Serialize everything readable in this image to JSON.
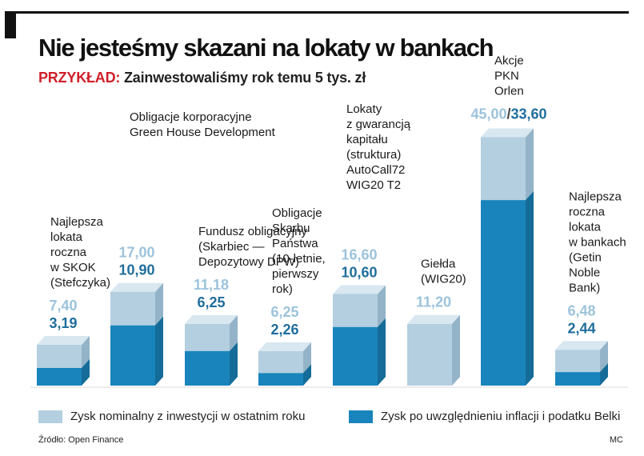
{
  "header": {
    "title": "Nie jesteśmy skazani na lokaty w bankach",
    "subtitle_prefix": "PRZYKŁAD:",
    "subtitle": "Zainwestowaliśmy rok temu 5 tys. zł"
  },
  "colors": {
    "nominal_front": "#b3cfe0",
    "nominal_side": "#93b3c8",
    "nominal_top": "#d8e7f0",
    "real_front": "#1884bb",
    "real_side": "#156c98",
    "accent_red": "#d0202a",
    "value_real_text": "#1f6e9c",
    "value_nominal_text": "#9cc3dc"
  },
  "legend": {
    "nominal": "Zysk nominalny z inwestycji w ostatnim roku",
    "real": "Zysk po uwzględnieniu inflacji i podatku Belki"
  },
  "footer": {
    "source": "Źródło: Open Finance",
    "author": "MC"
  },
  "chart_data": {
    "type": "bar",
    "ylabel": "",
    "series": [
      {
        "name": "Zysk nominalny z inwestycji w ostatnim roku",
        "values": [
          7.4,
          17.0,
          11.18,
          6.25,
          16.6,
          11.2,
          45.0,
          6.48
        ]
      },
      {
        "name": "Zysk po uwzględnieniu inflacji i podatku Belki",
        "values": [
          3.19,
          10.9,
          6.25,
          2.26,
          10.6,
          null,
          33.6,
          2.44
        ]
      }
    ],
    "bars": [
      {
        "label_lines": [
          "Najlepsza",
          "lokata",
          "roczna",
          "w SKOK",
          "(Stefczyka)"
        ],
        "nominal": 7.4,
        "real": 3.19,
        "nominal_text": "7,40",
        "real_text": "3,19"
      },
      {
        "label_lines": [
          "Obligacje korporacyjne",
          "Green House Development"
        ],
        "nominal": 17.0,
        "real": 10.9,
        "nominal_text": "17,00",
        "real_text": "10,90"
      },
      {
        "label_lines": [
          "Fundusz obligacyjny",
          "(Skarbiec —",
          "Depozytowy DPW)"
        ],
        "nominal": 11.18,
        "real": 6.25,
        "nominal_text": "11,18",
        "real_text": "6,25"
      },
      {
        "label_lines": [
          "Obligacje",
          "Skarbu",
          "Państwa",
          "(10-letnie,",
          "pierwszy",
          "rok)"
        ],
        "nominal": 6.25,
        "real": 2.26,
        "nominal_text": "6,25",
        "real_text": "2,26"
      },
      {
        "label_lines": [
          "Lokaty",
          "z gwarancją",
          "kapitału",
          "(struktura)",
          "AutoCall72",
          "WIG20 T2"
        ],
        "nominal": 16.6,
        "real": 10.6,
        "nominal_text": "16,60",
        "real_text": "10,60"
      },
      {
        "label_lines": [
          "Giełda",
          "(WIG20)"
        ],
        "nominal": 11.2,
        "real": null,
        "nominal_text": "11,20",
        "real_text": ""
      },
      {
        "label_lines": [
          "Akcje",
          "PKN",
          "Orlen"
        ],
        "nominal": 45.0,
        "real": 33.6,
        "nominal_text": "45,00",
        "real_text": "33,60"
      },
      {
        "label_lines": [
          "Najlepsza",
          "roczna",
          "lokata",
          "w bankach",
          "(Getin",
          "Noble",
          "Bank)"
        ],
        "nominal": 6.48,
        "real": 2.44,
        "nominal_text": "6,48",
        "real_text": "2,44"
      }
    ]
  }
}
